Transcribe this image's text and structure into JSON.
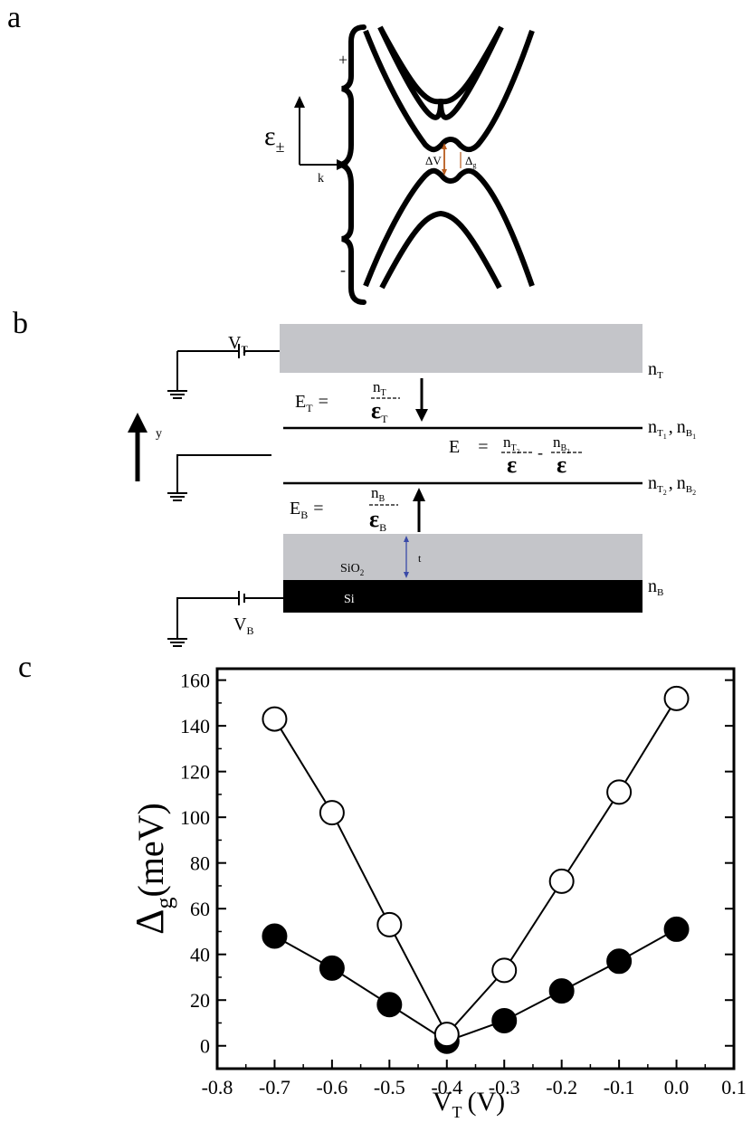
{
  "panels": {
    "a": {
      "letter": "a",
      "epsilon_label": "ε",
      "epsilon_sub": "±",
      "k_label": "k",
      "plus_label": "+",
      "minus_label": "-",
      "delta_v_label": "ΔV",
      "delta_g_label": "Δ",
      "delta_g_sub": "g",
      "arrow_color": "#b85c1e"
    },
    "b": {
      "letter": "b",
      "vt_label": "V",
      "vt_sub": "T",
      "vb_label": "V",
      "vb_sub": "B",
      "y_label": "y",
      "nt_label": "n",
      "nt_sub": "T",
      "ET_label": "E",
      "ET_sub": "T",
      "ET_num": "n",
      "ET_num_sub": "T",
      "ET_den": "ε",
      "ET_den_sub": "T",
      "EB_label": "E",
      "EB_sub": "B",
      "EB_num": "n",
      "EB_num_sub": "B",
      "EB_den": "ε",
      "EB_den_sub": "B",
      "E_label": "E",
      "E_num1": "n",
      "E_num1_sub": "T",
      "E_num1_subsub": "2",
      "E_num2": "n",
      "E_num2_sub": "B",
      "E_num2_subsub": "2",
      "E_den": "ε",
      "equals": "=",
      "minus": "-",
      "line1_n1": "n",
      "line1_n1_sub": "T",
      "line1_n1_subsub": "1",
      "line1_n2": "n",
      "line1_n2_sub": "B",
      "line1_n2_subsub": "1",
      "line2_n1": "n",
      "line2_n1_sub": "T",
      "line2_n1_subsub": "2",
      "line2_n2": "n",
      "line2_n2_sub": "B",
      "line2_n2_subsub": "2",
      "nb_label": "n",
      "nb_sub": "B",
      "sio2_label": "SiO",
      "sio2_sub": "2",
      "si_label": "Si",
      "t_label": "t",
      "gray_color": "#c4c5c9",
      "t_arrow_color": "#3a4aa8"
    },
    "c": {
      "letter": "c"
    }
  },
  "chart_data": {
    "type": "scatter",
    "xlabel": "V",
    "xlabel_sub": "T",
    "xlabel_unit": "(V)",
    "ylabel": "Δ",
    "ylabel_sub": "g",
    "ylabel_unit": "(meV)",
    "xlim": [
      -0.8,
      0.1
    ],
    "ylim": [
      -10,
      165
    ],
    "x_ticks": [
      "-0.8",
      "-0.7",
      "-0.6",
      "-0.5",
      "-0.4",
      "-0.3",
      "-0.2",
      "-0.1",
      "0.0",
      "0.1"
    ],
    "y_ticks": [
      "0",
      "20",
      "40",
      "60",
      "80",
      "100",
      "120",
      "140",
      "160"
    ],
    "series": [
      {
        "marker": "open-circle",
        "x": [
          -0.7,
          -0.6,
          -0.5,
          -0.4,
          -0.3,
          -0.2,
          -0.1,
          0.0
        ],
        "y": [
          143,
          102,
          53,
          5,
          33,
          72,
          111,
          152
        ]
      },
      {
        "marker": "filled-circle",
        "x": [
          -0.7,
          -0.6,
          -0.5,
          -0.4,
          -0.3,
          -0.2,
          -0.1,
          0.0
        ],
        "y": [
          48,
          34,
          18,
          2,
          11,
          24,
          37,
          51
        ]
      }
    ]
  }
}
